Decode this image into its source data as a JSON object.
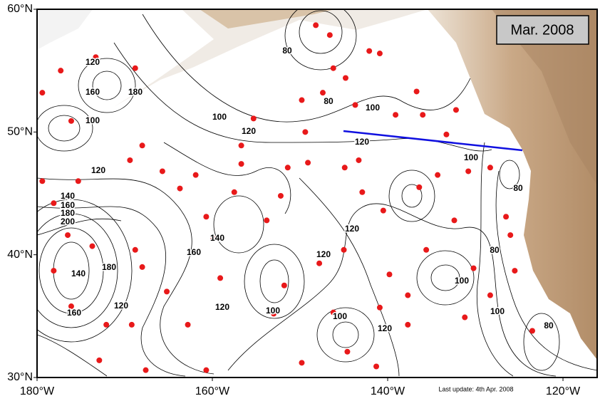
{
  "map": {
    "title": "Mar. 2008",
    "footnote": "Last update: 4th Apr. 2008",
    "xlim": [
      -180,
      -116.1
    ],
    "ylim": [
      30,
      60
    ],
    "xticks": [
      {
        "value": -180,
        "label": "180°W"
      },
      {
        "value": -160,
        "label": "160°W"
      },
      {
        "value": -140,
        "label": "140°W"
      },
      {
        "value": -120,
        "label": "120°W"
      }
    ],
    "yticks": [
      {
        "value": 30,
        "label": "30°N"
      },
      {
        "value": 40,
        "label": "40°N"
      },
      {
        "value": 50,
        "label": "50°N"
      },
      {
        "value": 60,
        "label": "60°N"
      }
    ],
    "contour_labels": [
      80,
      100,
      120,
      100,
      80,
      120,
      100,
      80,
      120,
      120,
      100,
      120,
      140,
      160,
      100,
      120,
      100,
      80,
      100,
      80,
      140,
      160,
      180,
      200,
      180,
      140,
      160,
      120,
      120,
      160,
      100,
      180,
      120
    ],
    "float_color": "#e8191a",
    "floats": [
      {
        "lon": -177.3,
        "lat": 55.0
      },
      {
        "lon": -173.3,
        "lat": 56.1
      },
      {
        "lon": -168.8,
        "lat": 55.2
      },
      {
        "lon": -179.4,
        "lat": 53.2
      },
      {
        "lon": -176.1,
        "lat": 50.9
      },
      {
        "lon": -174.1,
        "lat": 51.0
      },
      {
        "lon": -168.0,
        "lat": 48.9
      },
      {
        "lon": -169.4,
        "lat": 47.7
      },
      {
        "lon": -179.4,
        "lat": 46.0
      },
      {
        "lon": -175.3,
        "lat": 46.0
      },
      {
        "lon": -178.1,
        "lat": 44.2
      },
      {
        "lon": -176.5,
        "lat": 41.6
      },
      {
        "lon": -173.7,
        "lat": 40.7
      },
      {
        "lon": -178.1,
        "lat": 38.7
      },
      {
        "lon": -176.1,
        "lat": 35.8
      },
      {
        "lon": -172.1,
        "lat": 34.3
      },
      {
        "lon": -169.2,
        "lat": 34.3
      },
      {
        "lon": -172.9,
        "lat": 31.4
      },
      {
        "lon": -167.6,
        "lat": 30.6
      },
      {
        "lon": -168.8,
        "lat": 40.4
      },
      {
        "lon": -168.0,
        "lat": 39.0
      },
      {
        "lon": -165.2,
        "lat": 37.0
      },
      {
        "lon": -162.8,
        "lat": 34.3
      },
      {
        "lon": -160.7,
        "lat": 30.6
      },
      {
        "lon": -159.9,
        "lat": 41.3
      },
      {
        "lon": -160.7,
        "lat": 43.1
      },
      {
        "lon": -163.7,
        "lat": 45.4
      },
      {
        "lon": -165.7,
        "lat": 46.8
      },
      {
        "lon": -161.9,
        "lat": 46.5
      },
      {
        "lon": -156.7,
        "lat": 47.4
      },
      {
        "lon": -156.7,
        "lat": 48.9
      },
      {
        "lon": -155.3,
        "lat": 51.1
      },
      {
        "lon": -157.5,
        "lat": 45.1
      },
      {
        "lon": -152.2,
        "lat": 44.8
      },
      {
        "lon": -151.4,
        "lat": 47.1
      },
      {
        "lon": -149.4,
        "lat": 50.0
      },
      {
        "lon": -149.8,
        "lat": 52.6
      },
      {
        "lon": -147.4,
        "lat": 53.2
      },
      {
        "lon": -148.2,
        "lat": 58.7
      },
      {
        "lon": -146.6,
        "lat": 57.9
      },
      {
        "lon": -146.2,
        "lat": 55.2
      },
      {
        "lon": -144.8,
        "lat": 54.4
      },
      {
        "lon": -143.7,
        "lat": 52.2
      },
      {
        "lon": -142.1,
        "lat": 56.6
      },
      {
        "lon": -140.9,
        "lat": 56.4
      },
      {
        "lon": -136.7,
        "lat": 53.3
      },
      {
        "lon": -136.0,
        "lat": 51.4
      },
      {
        "lon": -139.1,
        "lat": 51.4
      },
      {
        "lon": -133.3,
        "lat": 49.8
      },
      {
        "lon": -132.2,
        "lat": 51.8
      },
      {
        "lon": -149.1,
        "lat": 47.5
      },
      {
        "lon": -144.9,
        "lat": 47.1
      },
      {
        "lon": -143.3,
        "lat": 47.7
      },
      {
        "lon": -142.9,
        "lat": 45.1
      },
      {
        "lon": -140.5,
        "lat": 43.6
      },
      {
        "lon": -136.4,
        "lat": 45.5
      },
      {
        "lon": -134.3,
        "lat": 46.5
      },
      {
        "lon": -130.8,
        "lat": 46.8
      },
      {
        "lon": -128.3,
        "lat": 47.1
      },
      {
        "lon": -126.5,
        "lat": 43.1
      },
      {
        "lon": -126.0,
        "lat": 41.6
      },
      {
        "lon": -125.5,
        "lat": 38.7
      },
      {
        "lon": -132.4,
        "lat": 42.8
      },
      {
        "lon": -130.2,
        "lat": 38.9
      },
      {
        "lon": -139.8,
        "lat": 38.4
      },
      {
        "lon": -137.7,
        "lat": 36.7
      },
      {
        "lon": -140.9,
        "lat": 35.7
      },
      {
        "lon": -137.7,
        "lat": 34.3
      },
      {
        "lon": -146.2,
        "lat": 35.3
      },
      {
        "lon": -144.6,
        "lat": 32.1
      },
      {
        "lon": -141.3,
        "lat": 30.9
      },
      {
        "lon": -149.8,
        "lat": 31.2
      },
      {
        "lon": -151.8,
        "lat": 37.5
      },
      {
        "lon": -153.0,
        "lat": 35.2
      },
      {
        "lon": -147.8,
        "lat": 39.3
      },
      {
        "lon": -145.0,
        "lat": 40.4
      },
      {
        "lon": -153.8,
        "lat": 42.8
      },
      {
        "lon": -159.1,
        "lat": 38.1
      },
      {
        "lon": -123.5,
        "lat": 33.8
      },
      {
        "lon": -135.6,
        "lat": 40.4
      },
      {
        "lon": -128.3,
        "lat": 36.7
      },
      {
        "lon": -131.2,
        "lat": 34.9
      }
    ]
  }
}
